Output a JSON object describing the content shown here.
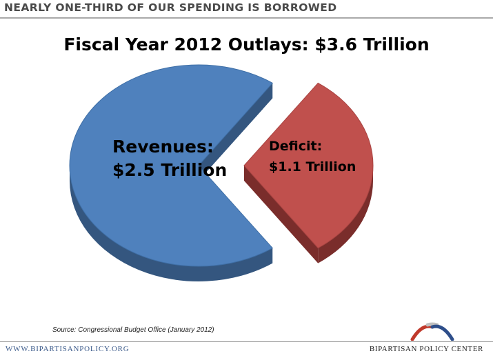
{
  "header": {
    "title": "NEARLY ONE-THIRD OF OUR SPENDING IS BORROWED"
  },
  "chart_data": {
    "type": "pie",
    "title": "Fiscal Year 2012 Outlays: $3.6 Trillion",
    "slices": [
      {
        "name": "Revenues:",
        "value_label": "$2.5 Trillion",
        "value": 2.5,
        "color": "#4f81bd",
        "side_color": "#34567f"
      },
      {
        "name": "Deficit:",
        "value_label": "$1.1 Trillion",
        "value": 1.1,
        "color": "#c0504d",
        "side_color": "#7a2d2b",
        "exploded": true
      }
    ],
    "total": 3.6,
    "unit": "Trillion"
  },
  "source": "Source: Congressional Budget Office (January 2012)",
  "footer": {
    "url": "WWW.BIPARTISANPOLICY.ORG",
    "org": "BIPARTISAN POLICY CENTER",
    "logo_colors": [
      "#c0392b",
      "#bfbfbf",
      "#2e4e8a"
    ]
  }
}
